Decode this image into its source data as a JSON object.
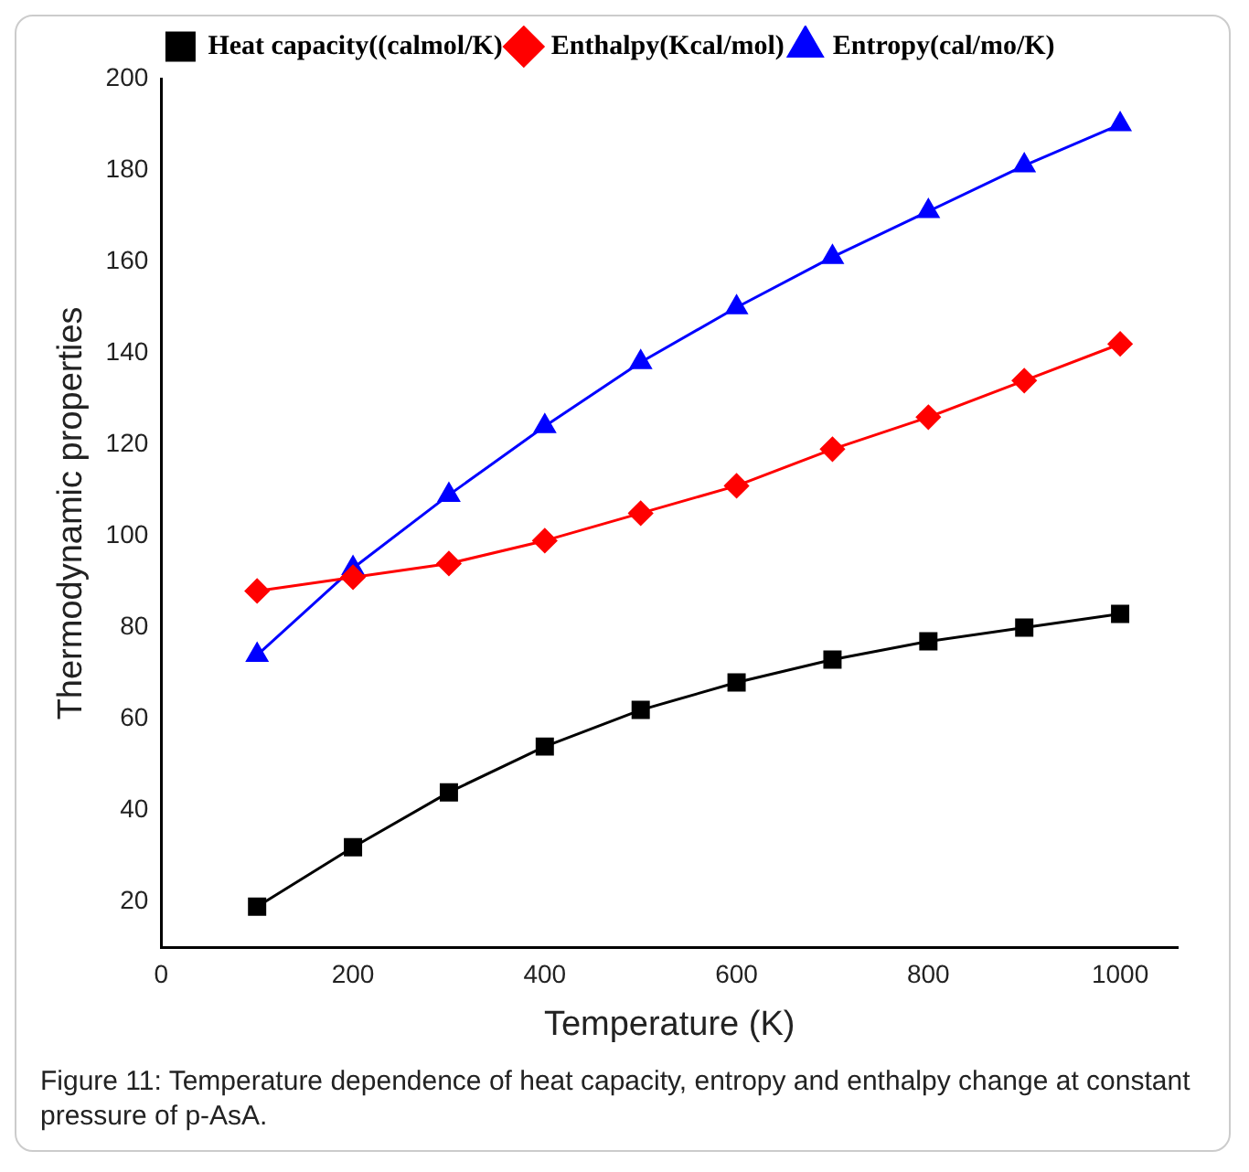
{
  "chart_data": {
    "type": "line",
    "xlabel": "Temperature (K)",
    "ylabel": "Thermodynamic properties",
    "x": [
      100,
      200,
      300,
      400,
      500,
      600,
      700,
      800,
      900,
      1000
    ],
    "series": [
      {
        "name": "Heat capacity((calmol/K)",
        "color": "#000000",
        "marker": "square",
        "values": [
          19,
          32,
          44,
          54,
          62,
          68,
          73,
          77,
          80,
          83
        ]
      },
      {
        "name": "Enthalpy(Kcal/mol)",
        "color": "#ff0000",
        "marker": "diamond",
        "values": [
          88,
          91,
          94,
          99,
          105,
          111,
          119,
          126,
          134,
          142
        ]
      },
      {
        "name": "Entropy(cal/mo/K)",
        "color": "#0000ff",
        "marker": "triangle",
        "values": [
          74,
          93,
          109,
          124,
          138,
          150,
          161,
          171,
          181,
          190
        ]
      }
    ],
    "xlim": [
      0,
      1060
    ],
    "xticks": [
      0,
      200,
      400,
      600,
      800,
      1000
    ],
    "ylim": [
      10,
      200
    ],
    "yticks": [
      20,
      40,
      60,
      80,
      100,
      120,
      140,
      160,
      180,
      200
    ],
    "grid": false,
    "legend": "top",
    "line_style": "solid",
    "annotations": [
      "Figure 11: Temperature dependence of heat capacity, entropy and enthalpy change at constant pressure of p-AsA."
    ]
  }
}
